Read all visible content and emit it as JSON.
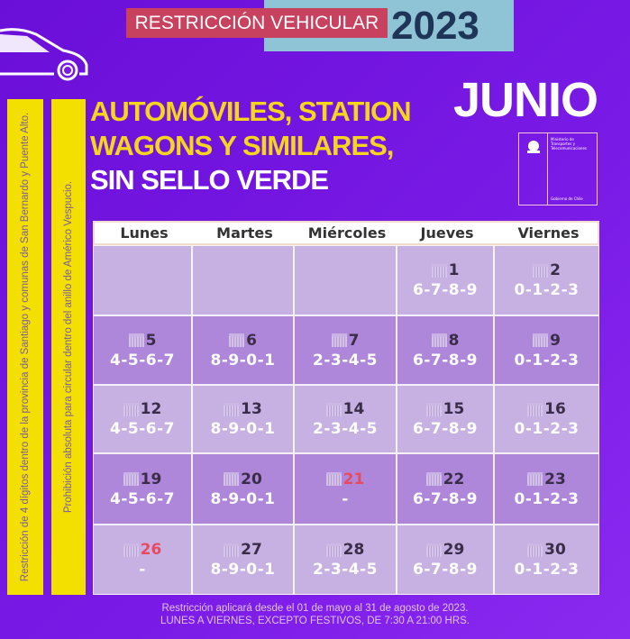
{
  "header": {
    "title": "RESTRICCIÓN VEHICULAR",
    "year": "2023",
    "month": "JUNIO"
  },
  "heading": {
    "line1": "AUTOMÓVILES, STATION",
    "line2": "WAGONS Y SIMILARES,",
    "line3": "SIN SELLO VERDE"
  },
  "logo": {
    "ministry": "Ministerio de Transportes y Telecomunicaciones",
    "government": "Gobierno de Chile"
  },
  "side_notes": [
    "Restricción de 4 dígitos dentro de la provincia de Santiago y comunas de San Bernardo y Puente Alto.",
    "Prohibición absoluta para circular dentro del anillo de Américo Vespucio."
  ],
  "calendar": {
    "days": [
      "Lunes",
      "Martes",
      "Miércoles",
      "Jueves",
      "Viernes"
    ],
    "weeks": [
      [
        null,
        null,
        null,
        {
          "day": "1",
          "digits": "6-7-8-9"
        },
        {
          "day": "2",
          "digits": "0-1-2-3"
        }
      ],
      [
        {
          "day": "5",
          "digits": "4-5-6-7"
        },
        {
          "day": "6",
          "digits": "8-9-0-1"
        },
        {
          "day": "7",
          "digits": "2-3-4-5"
        },
        {
          "day": "8",
          "digits": "6-7-8-9"
        },
        {
          "day": "9",
          "digits": "0-1-2-3"
        }
      ],
      [
        {
          "day": "12",
          "digits": "4-5-6-7"
        },
        {
          "day": "13",
          "digits": "8-9-0-1"
        },
        {
          "day": "14",
          "digits": "2-3-4-5"
        },
        {
          "day": "15",
          "digits": "6-7-8-9"
        },
        {
          "day": "16",
          "digits": "0-1-2-3"
        }
      ],
      [
        {
          "day": "19",
          "digits": "4-5-6-7"
        },
        {
          "day": "20",
          "digits": "8-9-0-1"
        },
        {
          "day": "21",
          "digits": "-",
          "holiday": true
        },
        {
          "day": "22",
          "digits": "6-7-8-9"
        },
        {
          "day": "23",
          "digits": "0-1-2-3"
        }
      ],
      [
        {
          "day": "26",
          "digits": "-",
          "holiday": true
        },
        {
          "day": "27",
          "digits": "8-9-0-1"
        },
        {
          "day": "28",
          "digits": "2-3-4-5"
        },
        {
          "day": "29",
          "digits": "6-7-8-9"
        },
        {
          "day": "30",
          "digits": "0-1-2-3"
        }
      ]
    ]
  },
  "footer": {
    "line1": "Restricción aplicará desde el 01 de mayo al 31 de agosto de 2023.",
    "line2": "LUNES A VIERNES, EXCEPTO FESTIVOS, DE 7:30 A 21:00 HRS."
  },
  "colors": {
    "background": "#7a1ae6",
    "title_bg": "#c8415e",
    "year_bg": "#8fc3d6",
    "yellow": "#f3e000",
    "holiday": "#e84a5f"
  }
}
